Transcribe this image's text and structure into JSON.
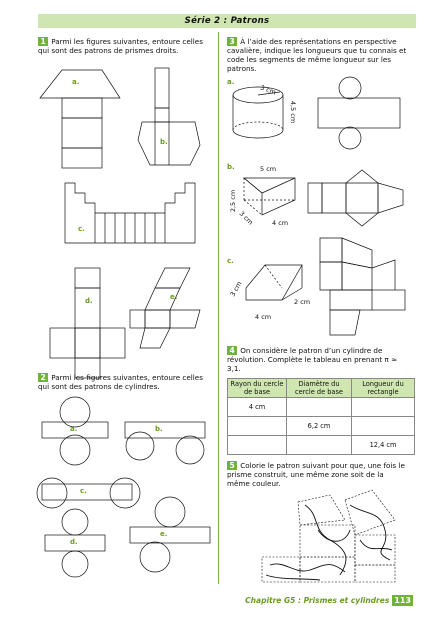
{
  "header": {
    "title": "Série 2 : Patrons"
  },
  "exercises": {
    "ex1": {
      "num": "1",
      "text": "Parmi les figures suivantes, entoure celles qui sont des patrons de prismes droits.",
      "labels": [
        "a.",
        "b.",
        "c.",
        "d.",
        "e."
      ]
    },
    "ex2": {
      "num": "2",
      "text": "Parmi les figures suivantes, entoure celles qui sont des patrons de cylindres.",
      "labels": [
        "a.",
        "b.",
        "c.",
        "d.",
        "e."
      ]
    },
    "ex3": {
      "num": "3",
      "text": "À l’aide des représentations en perspective cavalière, indique les longueurs que tu connais et code les segments de même longueur sur les patrons.",
      "labels": [
        "a.",
        "b.",
        "c."
      ],
      "dims": {
        "a_r": "3 cm",
        "a_h": "4,5 cm",
        "b_top": "5 cm",
        "b_side": "2,5 cm",
        "b_3": "3 cm",
        "b_4": "4 cm",
        "c_3": "3 cm",
        "c_2": "2 cm",
        "c_4": "4 cm"
      }
    },
    "ex4": {
      "num": "4",
      "text": "On considère le patron d’un cylindre de révolution. Complète le tableau en prenant π ≈ 3,1.",
      "table": {
        "headers": [
          "Rayon du cercle de base",
          "Diamètre du cercle de base",
          "Longueur du rectangle"
        ],
        "rows": [
          [
            "4 cm",
            "",
            ""
          ],
          [
            "",
            "6,2 cm",
            ""
          ],
          [
            "",
            "",
            "12,4 cm"
          ]
        ]
      }
    },
    "ex5": {
      "num": "5",
      "text": "Colorie le patron suivant pour que, une fois le prisme construit, une même zone soit de la même couleur."
    }
  },
  "footer": {
    "chapter": "Chapitre G5 : Prismes et cylindres",
    "page": "113"
  }
}
